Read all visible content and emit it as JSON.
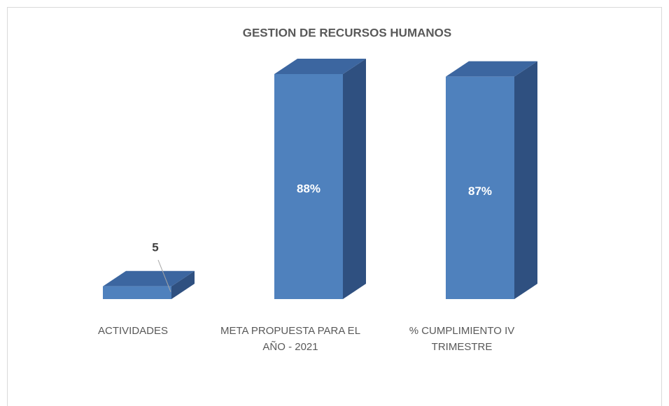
{
  "chart_data": {
    "type": "bar3d",
    "title": "GESTION DE RECURSOS HUMANOS",
    "categories": [
      "ACTIVIDADES",
      "META PROPUESTA PARA EL AÑO - 2021",
      "% CUMPLIMIENTO IV TRIMESTRE"
    ],
    "values": [
      5,
      88,
      87
    ],
    "value_labels": [
      "5",
      "88%",
      "87%"
    ],
    "color": "#4f81bd"
  }
}
